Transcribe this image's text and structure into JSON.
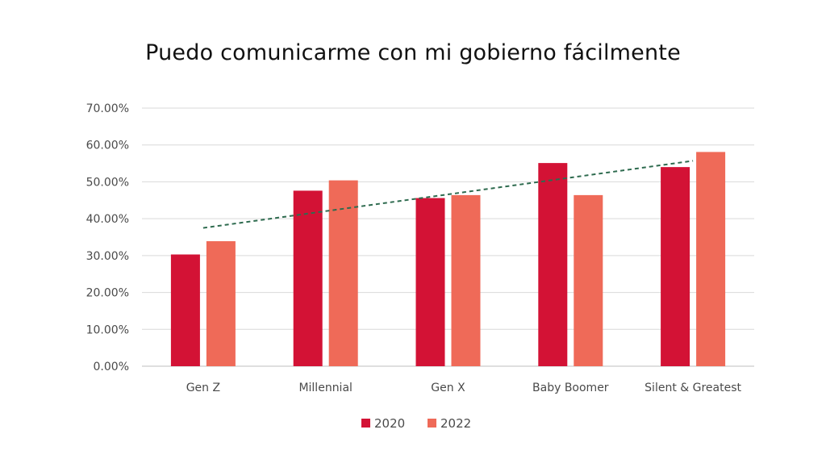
{
  "chart_data": {
    "type": "bar",
    "title": "Puedo comunicarme con mi gobierno fácilmente",
    "categories": [
      "Gen Z",
      "Millennial",
      "Gen X",
      "Baby Boomer",
      "Silent & Greatest"
    ],
    "series": [
      {
        "name": "2020",
        "color": "#d31235",
        "values": [
          30.3,
          47.6,
          45.6,
          55.1,
          54.0
        ]
      },
      {
        "name": "2022",
        "color": "#ef6a58",
        "values": [
          33.9,
          50.4,
          46.4,
          46.4,
          58.1
        ]
      }
    ],
    "yticks": [
      "0.00%",
      "10.00%",
      "20.00%",
      "30.00%",
      "40.00%",
      "50.00%",
      "60.00%",
      "70.00%"
    ],
    "ylim": [
      0,
      70
    ],
    "grid": true,
    "legend_position": "bottom",
    "trendline": {
      "style": "dashed",
      "color": "#2e6b4f",
      "start": 37.5,
      "end": 55.7
    }
  }
}
